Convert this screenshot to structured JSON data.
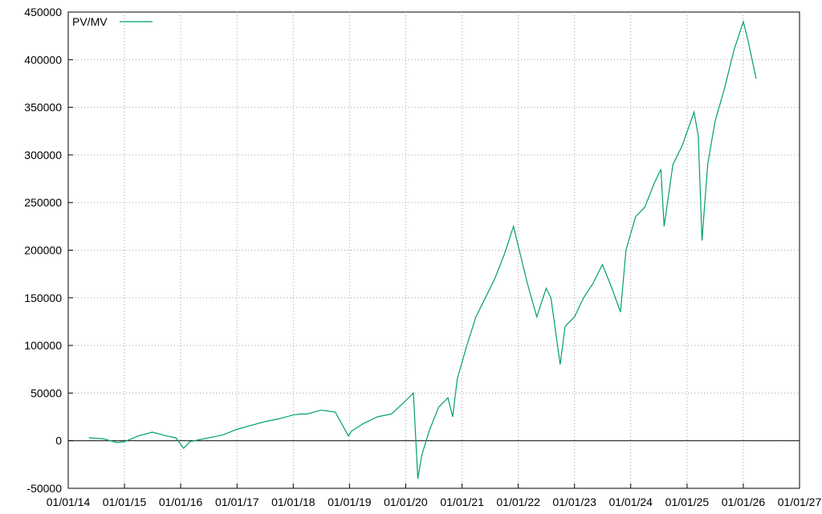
{
  "chart_data": {
    "type": "line",
    "x": [
      "15/05/14",
      "15/08/14",
      "15/11/14",
      "01/01/15",
      "01/04/15",
      "01/07/15",
      "01/10/15",
      "01/12/15",
      "20/01/16",
      "01/03/16",
      "01/06/16",
      "01/10/16",
      "01/01/17",
      "01/04/17",
      "01/07/17",
      "01/10/17",
      "01/01/18",
      "15/02/18",
      "01/04/18",
      "01/07/18",
      "01/10/18",
      "25/12/18",
      "15/01/19",
      "01/04/19",
      "01/07/19",
      "01/10/19",
      "01/01/20",
      "20/02/20",
      "20/03/20",
      "15/04/20",
      "01/06/20",
      "01/08/20",
      "01/10/20",
      "01/11/20",
      "01/12/20",
      "01/02/21",
      "01/04/21",
      "01/06/21",
      "01/08/21",
      "01/10/21",
      "01/12/21",
      "15/01/22",
      "01/03/22",
      "01/05/22",
      "01/07/22",
      "01/08/22",
      "30/09/22",
      "01/11/22",
      "01/01/23",
      "01/03/23",
      "01/05/23",
      "01/07/23",
      "01/09/23",
      "27/10/23",
      "01/12/23",
      "01/02/24",
      "01/04/24",
      "01/06/24",
      "15/07/24",
      "05/08/24",
      "01/10/24",
      "01/12/24",
      "15/02/25",
      "15/03/25",
      "08/04/25",
      "15/05/25",
      "01/07/25",
      "01/09/25",
      "01/11/25",
      "01/01/26",
      "01/02/26",
      "25/03/26"
    ],
    "series": [
      {
        "name": "PV/MV",
        "color": "#009e73",
        "values": [
          3000,
          2000,
          -2000,
          -1000,
          5000,
          9000,
          5000,
          3000,
          -8000,
          -1000,
          2000,
          6000,
          12000,
          16000,
          20000,
          23000,
          27000,
          28000,
          28000,
          32000,
          30000,
          5000,
          10000,
          18000,
          25000,
          28000,
          42000,
          50000,
          -40000,
          -15000,
          10000,
          35000,
          45000,
          25000,
          65000,
          100000,
          130000,
          150000,
          170000,
          195000,
          225000,
          195000,
          165000,
          130000,
          160000,
          150000,
          80000,
          120000,
          130000,
          150000,
          165000,
          185000,
          160000,
          135000,
          200000,
          235000,
          245000,
          270000,
          285000,
          225000,
          290000,
          310000,
          345000,
          320000,
          210000,
          290000,
          335000,
          370000,
          410000,
          440000,
          420000,
          380000
        ]
      }
    ],
    "xlim": [
      "01/01/14",
      "01/01/27"
    ],
    "xticks": [
      "01/01/14",
      "01/01/15",
      "01/01/16",
      "01/01/17",
      "01/01/18",
      "01/01/19",
      "01/01/20",
      "01/01/21",
      "01/01/22",
      "01/01/23",
      "01/01/24",
      "01/01/25",
      "01/01/26",
      "01/01/27"
    ],
    "ylim": [
      -50000,
      450000
    ],
    "yticks": [
      -50000,
      0,
      50000,
      100000,
      150000,
      200000,
      250000,
      300000,
      350000,
      400000,
      450000
    ],
    "grid": true,
    "legend": "top-left"
  }
}
